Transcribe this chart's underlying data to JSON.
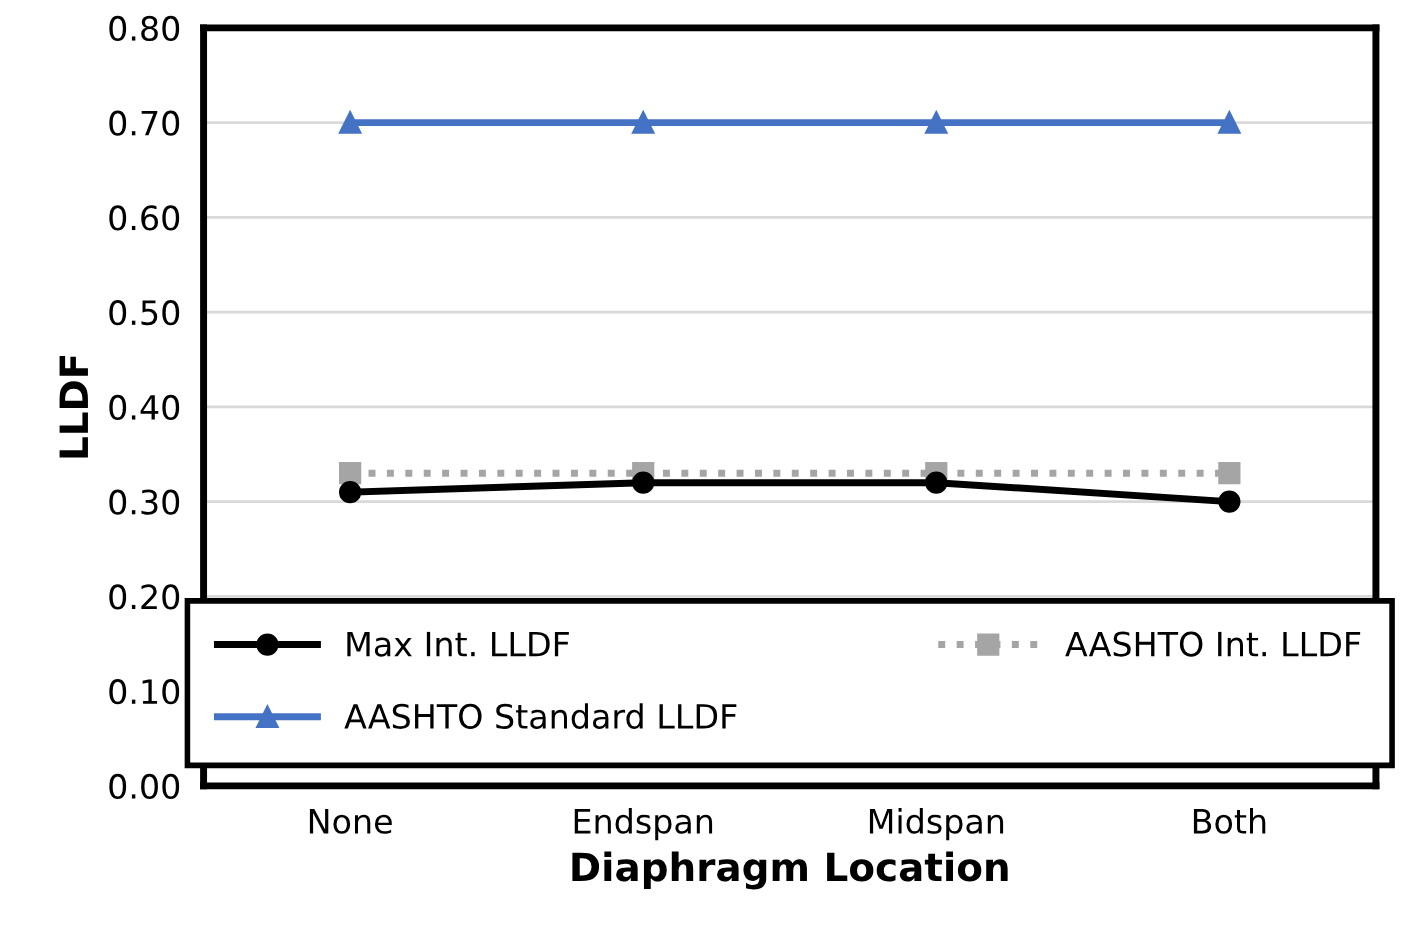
{
  "chart_data": {
    "type": "line",
    "xlabel": "Diaphragm Location",
    "ylabel": "LLDF",
    "categories": [
      "None",
      "Endspan",
      "Midspan",
      "Both"
    ],
    "series": [
      {
        "name": "Max Int. LLDF",
        "color": "#000000",
        "values": [
          0.31,
          0.32,
          0.32,
          0.3
        ],
        "marker": "circle",
        "line_style": "solid"
      },
      {
        "name": "AASHTO Int. LLDF",
        "color": "#a5a5a5",
        "values": [
          0.33,
          0.33,
          0.33,
          0.33
        ],
        "marker": "square",
        "line_style": "dotted"
      },
      {
        "name": "AASHTO Standard LLDF",
        "color": "#4472c4",
        "values": [
          0.7,
          0.7,
          0.7,
          0.7
        ],
        "marker": "triangle",
        "line_style": "solid"
      }
    ],
    "ylim": [
      0,
      0.8
    ],
    "yticks": [
      {
        "value": 0,
        "label": "0.00"
      },
      {
        "value": 0.1,
        "label": "0.10"
      },
      {
        "value": 0.2,
        "label": "0.20"
      },
      {
        "value": 0.3,
        "label": "0.30"
      },
      {
        "value": 0.4,
        "label": "0.40"
      },
      {
        "value": 0.5,
        "label": "0.50"
      },
      {
        "value": 0.6,
        "label": "0.60"
      },
      {
        "value": 0.7,
        "label": "0.70"
      },
      {
        "value": 0.8,
        "label": "0.80"
      }
    ],
    "grid": "y",
    "legend": "bottom"
  }
}
